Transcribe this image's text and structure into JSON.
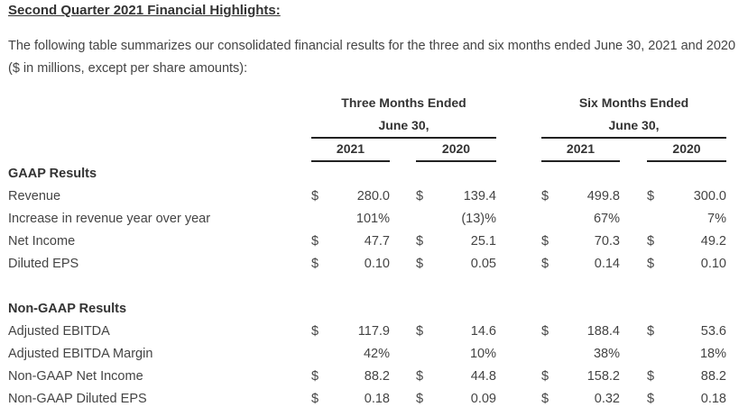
{
  "title": "Second Quarter 2021 Financial Highlights:",
  "intro": "The following table summarizes our consolidated financial results for the three and six months ended June 30, 2021 and 2020 ($ in millions, except per share amounts):",
  "header": {
    "three_months": "Three Months Ended",
    "six_months": "Six Months Ended",
    "period_end": "June 30,",
    "year_a": "2021",
    "year_b": "2020"
  },
  "currency_symbol": "$",
  "sections": {
    "gaap": {
      "heading": "GAAP Results",
      "rows": [
        {
          "label": "Revenue",
          "dollar": true,
          "values": [
            "280.0",
            "139.4",
            "499.8",
            "300.0"
          ]
        },
        {
          "label": "Increase in revenue year over year",
          "dollar": false,
          "values": [
            "101%",
            "(13)%",
            "67%",
            "7%"
          ]
        },
        {
          "label": "Net Income",
          "dollar": true,
          "values": [
            "47.7",
            "25.1",
            "70.3",
            "49.2"
          ]
        },
        {
          "label": "Diluted EPS",
          "dollar": true,
          "values": [
            "0.10",
            "0.05",
            "0.14",
            "0.10"
          ]
        }
      ]
    },
    "non_gaap": {
      "heading": "Non-GAAP Results",
      "rows": [
        {
          "label": "Adjusted EBITDA",
          "dollar": true,
          "values": [
            "117.9",
            "14.6",
            "188.4",
            "53.6"
          ]
        },
        {
          "label": "Adjusted EBITDA Margin",
          "dollar": false,
          "values": [
            "42%",
            "10%",
            "38%",
            "18%"
          ]
        },
        {
          "label": "Non-GAAP Net Income",
          "dollar": true,
          "values": [
            "88.2",
            "44.8",
            "158.2",
            "88.2"
          ]
        },
        {
          "label": "Non-GAAP Diluted EPS",
          "dollar": true,
          "values": [
            "0.18",
            "0.09",
            "0.32",
            "0.18"
          ]
        }
      ]
    }
  }
}
